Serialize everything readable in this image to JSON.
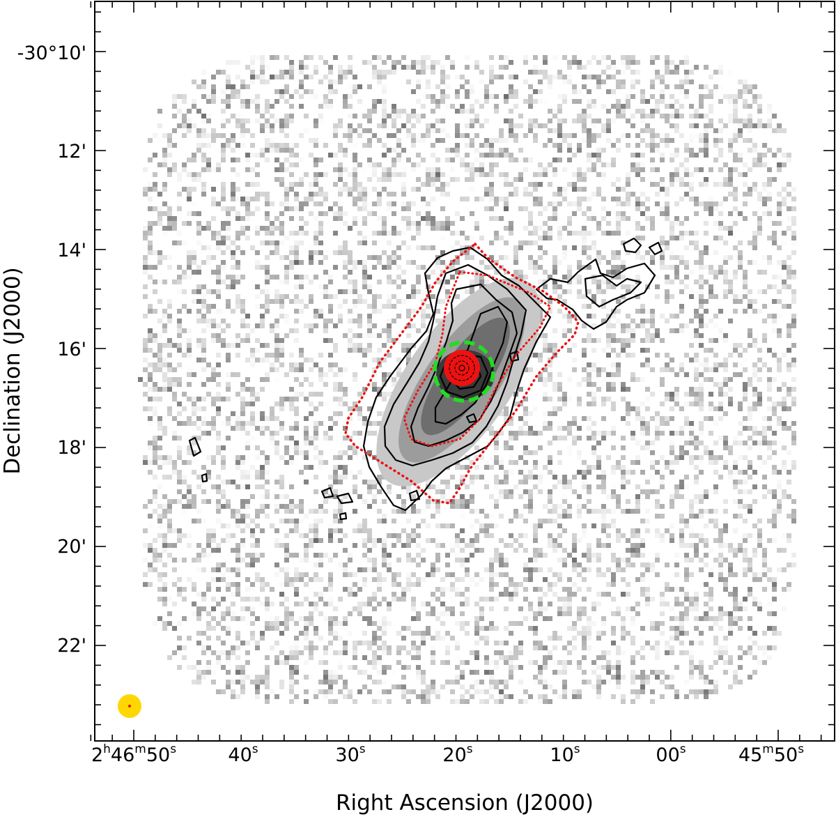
{
  "chart_data": {
    "type": "heatmap",
    "xlabel": "Right Ascension (J2000)",
    "ylabel": "Declination (J2000)",
    "grid": false,
    "colormap": "grayscale",
    "x_ticks": [
      {
        "h": "2",
        "m": "46",
        "s": "50",
        "label": "2h46m50s"
      },
      {
        "s": "40",
        "label": "40s"
      },
      {
        "s": "30",
        "label": "30s"
      },
      {
        "s": "20",
        "label": "20s"
      },
      {
        "s": "10",
        "label": "10s"
      },
      {
        "s": "00",
        "label": "00s"
      },
      {
        "m": "45",
        "s": "50",
        "label": "45m50s"
      }
    ],
    "y_ticks": [
      "-30°10'",
      "12'",
      "14'",
      "16'",
      "18'",
      "20'",
      "22'"
    ],
    "ra_range_s": [
      2813,
      2747
    ],
    "dec_range_arcmin": [
      -1823.8,
      -1809.1
    ],
    "overlays": {
      "black_contours": "contour levels on grayscale map",
      "red_contours": "second contour set (dotted)",
      "green_circle": "dashed green aperture at source centre",
      "beam": "yellow beam ellipse"
    },
    "colors": {
      "contour": "#000000",
      "red_contour": "#ee1111",
      "aperture": "#22dd22",
      "beam": "#ffd700",
      "beam_center": "#ee1111"
    }
  }
}
